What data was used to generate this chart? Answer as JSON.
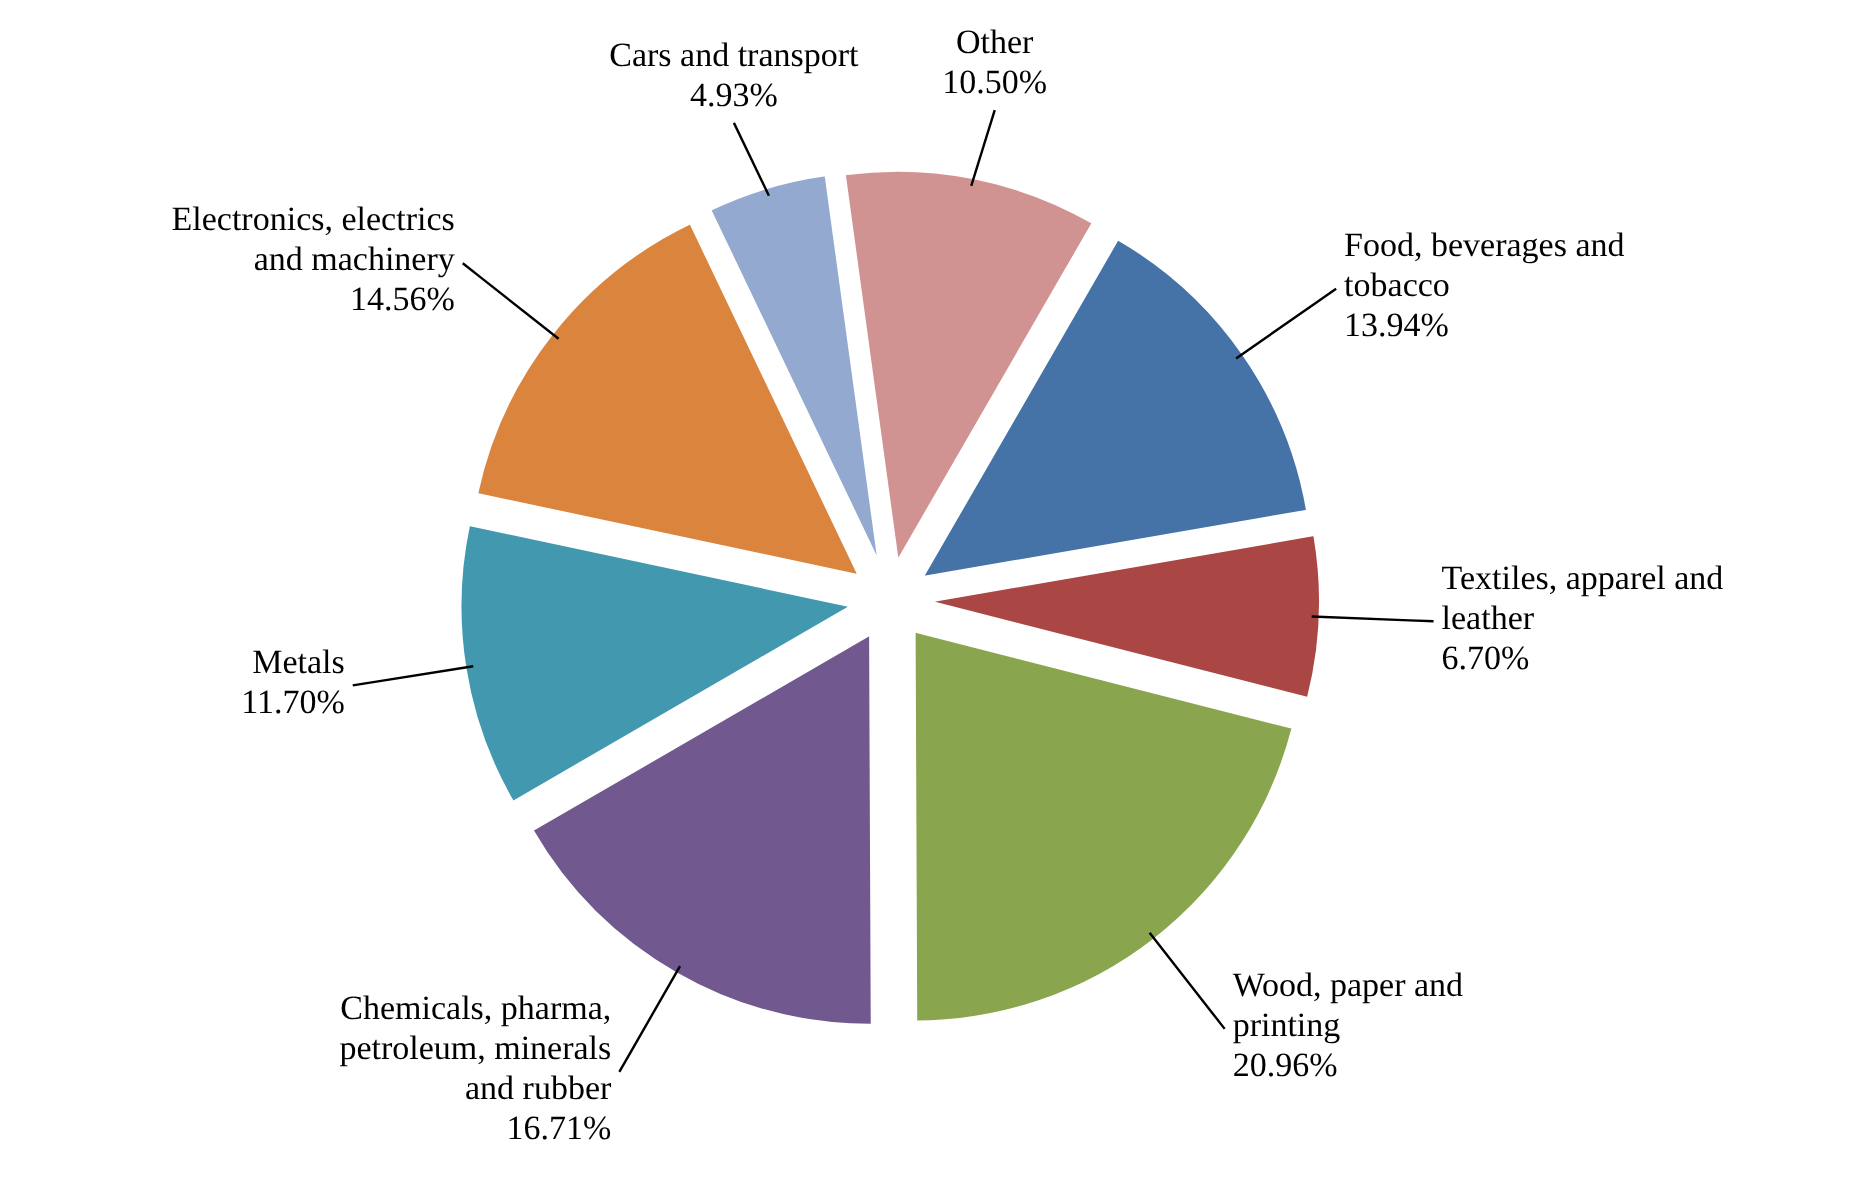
{
  "chart_data": {
    "type": "pie",
    "categories": [
      "Food, beverages and tobacco",
      "Textiles, apparel and leather",
      "Wood, paper and printing",
      "Chemicals, pharma, petroleum, minerals and rubber",
      "Metals",
      "Electronics, electrics and machinery",
      "Cars and transport",
      "Other"
    ],
    "values": [
      13.94,
      6.7,
      20.96,
      16.71,
      11.7,
      14.56,
      4.93,
      10.5
    ],
    "value_labels": [
      "13.94%",
      "6.70%",
      "20.96%",
      "16.71%",
      "11.70%",
      "14.56%",
      "4.93%",
      "10.50%"
    ],
    "colors": [
      "#4573a7",
      "#aa4644",
      "#89a54e",
      "#71588f",
      "#4298af",
      "#db843d",
      "#93a9cf",
      "#d19392"
    ]
  }
}
